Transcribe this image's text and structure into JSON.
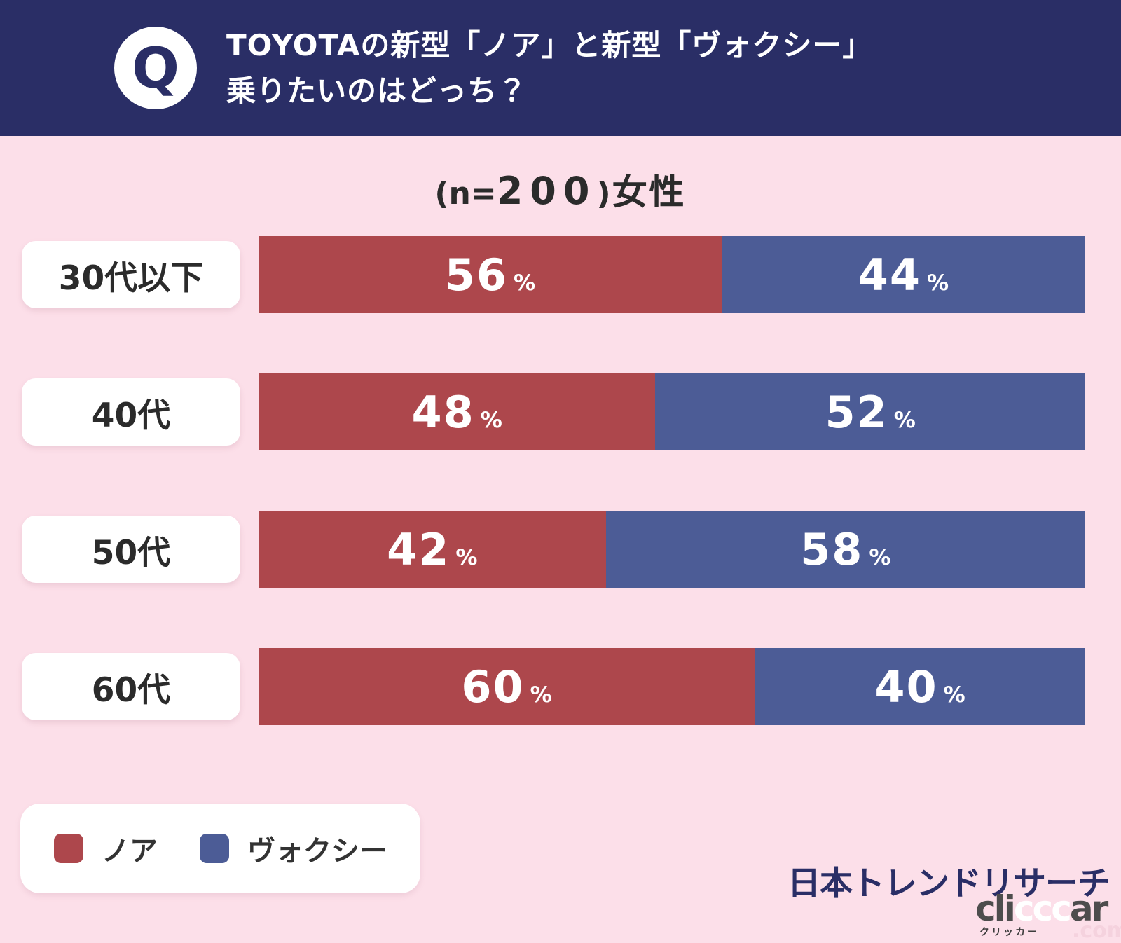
{
  "header": {
    "badge": "Q",
    "title_line1": "TOYOTAの新型「ノア」と新型「ヴォクシー」",
    "title_line2": "乗りたいのはどっち？"
  },
  "subtitle": {
    "prefix": "(n=",
    "count": "200",
    "suffix": ")",
    "group": "女性"
  },
  "chart_data": {
    "type": "bar",
    "orientation": "horizontal-stacked",
    "title": "TOYOTAの新型「ノア」と新型「ヴォクシー」乗りたいのはどっち？",
    "subtitle": "(n=200)女性",
    "sample_size": 200,
    "categories": [
      "30代以下",
      "40代",
      "50代",
      "60代"
    ],
    "series": [
      {
        "name": "ノア",
        "color": "#AD474C",
        "values": [
          56,
          48,
          42,
          60
        ]
      },
      {
        "name": "ヴォクシー",
        "color": "#4C5C96",
        "values": [
          44,
          52,
          58,
          40
        ]
      }
    ],
    "unit": "%",
    "xlim": [
      0,
      100
    ],
    "grid": false,
    "legend_position": "bottom-left"
  },
  "footer": {
    "brand": "日本トレンドリサーチ",
    "watermark": {
      "part1": "cli",
      "part2": "ccc",
      "part3": "ar",
      "sub": "クリッカー",
      "domain": ".com"
    }
  },
  "colors": {
    "header_bg": "#2A2E66",
    "page_bg": "#FCDFE9",
    "noah_red": "#AD474C",
    "voxy_blue": "#4C5C96",
    "text_dark": "#2b2b2b",
    "brand_navy": "#2A2E66"
  }
}
